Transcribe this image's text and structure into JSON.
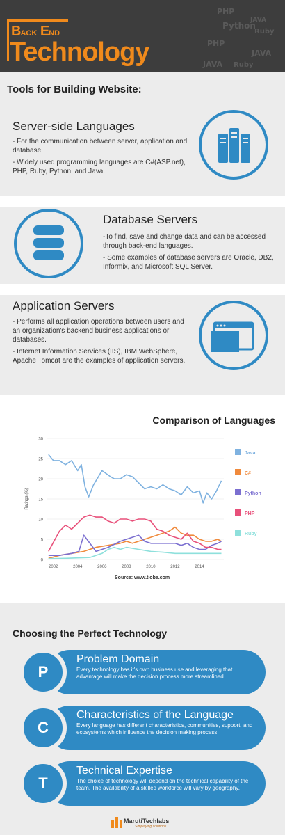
{
  "header": {
    "logo_b": "B",
    "logo_ack": "ACK",
    "logo_e": "E",
    "logo_nd": "ND",
    "logo_main": "Technology",
    "bg_words": [
      "PHP",
      "JAVA",
      "Python",
      "Ruby",
      "PHP",
      "JAVA",
      "Ruby",
      "JAVA"
    ]
  },
  "tools": {
    "title": "Tools for Building Website:",
    "server_side": {
      "title": "Server-side Languages",
      "p1": "- For the communication between server, application and database.",
      "p2": "- Widely used programming languages are C#(ASP.net), PHP, Ruby, Python, and Java.",
      "icon": "server-icon"
    },
    "database": {
      "title": "Database Servers",
      "p1": "-To find, save and change data and can be accessed through back-end languages.",
      "p2": "- Some examples of database servers are Oracle, DB2, Informix, and Microsoft SQL Server.",
      "icon": "database-icon"
    },
    "application": {
      "title": "Application Servers",
      "p1": "- Performs all application operations between users and an organization's backend business applications or databases.",
      "p2": "- Internet Information Services (IIS), IBM WebSphere, Apache Tomcat are the examples of application servers.",
      "icon": "app-window-icon"
    }
  },
  "chart_section": {
    "title": "Comparison of Languages",
    "source": "Source: www.tiobe.com"
  },
  "chart_data": {
    "type": "line",
    "ylabel": "Ratings (%)",
    "ylim": [
      0,
      30
    ],
    "yticks": [
      0,
      5,
      10,
      15,
      20,
      25,
      30
    ],
    "xlim": [
      2001.5,
      2016
    ],
    "xticks": [
      2002,
      2004,
      2006,
      2008,
      2010,
      2012,
      2014
    ],
    "grid": "horizontal",
    "legend": "right",
    "series": [
      {
        "name": "Java",
        "color": "#7fb2e0",
        "x": [
          2001.6,
          2002,
          2002.5,
          2003,
          2003.5,
          2004,
          2004.3,
          2004.6,
          2004.9,
          2005.3,
          2006,
          2006.7,
          2007,
          2007.5,
          2008,
          2008.5,
          2009,
          2009.5,
          2010,
          2010.5,
          2011,
          2011.5,
          2012,
          2012.5,
          2013,
          2013.5,
          2014,
          2014.3,
          2014.6,
          2015,
          2015.4,
          2015.8
        ],
        "y": [
          26,
          24.5,
          24.5,
          23.5,
          24.5,
          22,
          23.5,
          18,
          15.5,
          18.5,
          22,
          20.5,
          20,
          20,
          21,
          20.5,
          19,
          17.5,
          18,
          17.5,
          18.5,
          17.5,
          17,
          16,
          18,
          16.5,
          17,
          14,
          16.5,
          15,
          17,
          19.5
        ]
      },
      {
        "name": "C#",
        "color": "#f08a3c",
        "x": [
          2001.6,
          2002.5,
          2003.5,
          2004.5,
          2005.5,
          2006.5,
          2007.5,
          2008,
          2008.5,
          2009,
          2009.5,
          2010,
          2010.5,
          2011,
          2011.5,
          2012,
          2012.5,
          2013,
          2013.5,
          2014,
          2014.5,
          2015,
          2015.5,
          2015.8
        ],
        "y": [
          0.3,
          1,
          1.5,
          2,
          3,
          3.5,
          4,
          4.5,
          4,
          4.5,
          5,
          5.5,
          6,
          6.5,
          7,
          8,
          6.5,
          6,
          6,
          5,
          4.5,
          4.5,
          5,
          4.5
        ]
      },
      {
        "name": "Python",
        "color": "#7b6fd0",
        "x": [
          2001.6,
          2002.5,
          2003.5,
          2004.1,
          2004.5,
          2005.5,
          2006.5,
          2007.5,
          2008,
          2008.5,
          2009,
          2009.5,
          2010,
          2010.5,
          2011,
          2011.5,
          2012,
          2012.5,
          2013,
          2013.5,
          2014,
          2014.5,
          2015,
          2015.5,
          2015.8
        ],
        "y": [
          1,
          1,
          1.5,
          2,
          6,
          2,
          3,
          4.5,
          5,
          5.5,
          6,
          4.5,
          4,
          4,
          4,
          4,
          4,
          3.5,
          4,
          3,
          2.5,
          2.5,
          3.5,
          4,
          4.5
        ]
      },
      {
        "name": "PHP",
        "color": "#e8507a",
        "x": [
          2001.6,
          2002.5,
          2003,
          2003.5,
          2004,
          2004.5,
          2005,
          2005.5,
          2006,
          2006.5,
          2007,
          2007.5,
          2008,
          2008.5,
          2009,
          2009.5,
          2010,
          2010.5,
          2011,
          2011.5,
          2012,
          2012.5,
          2013,
          2013.5,
          2014,
          2014.5,
          2015,
          2015.5,
          2015.8
        ],
        "y": [
          2,
          7,
          8.5,
          7.5,
          9,
          10.5,
          11,
          10.5,
          10.5,
          9.5,
          9,
          10,
          10,
          9.5,
          10,
          10,
          9.5,
          7.5,
          7,
          6,
          5.5,
          5,
          6.5,
          4.5,
          4,
          3,
          3,
          2.5,
          2.5
        ]
      },
      {
        "name": "Ruby",
        "color": "#8ee0dc",
        "x": [
          2001.6,
          2003,
          2004,
          2005,
          2006,
          2006.5,
          2007,
          2007.5,
          2008,
          2009,
          2010,
          2011,
          2012,
          2013,
          2014,
          2015,
          2015.8
        ],
        "y": [
          0.2,
          0.3,
          0.4,
          0.5,
          1.5,
          2.5,
          3,
          2.5,
          3,
          2.5,
          2,
          1.8,
          1.5,
          1.5,
          1.5,
          1.5,
          1.5
        ]
      }
    ]
  },
  "choosing": {
    "title": "Choosing the Perfect Technology",
    "items": [
      {
        "letter": "P",
        "title": "Problem Domain",
        "text": "Every technology has it's own business use and leveraging that advantage will make the decision process more streamlined."
      },
      {
        "letter": "C",
        "title": "Characteristics of the Language",
        "text": "Every language has different characteristics, communities, support, and ecosystems which influence the decision making process."
      },
      {
        "letter": "T",
        "title": "Technical Expertise",
        "text": "The choice of technology will depend on the technical capability of the team. The availability of a skilled workforce will vary by geography."
      }
    ]
  },
  "footer": {
    "name": "MarutiTechlabs",
    "tagline": "Simplifying solutions..."
  },
  "colors": {
    "accent": "#2f8ac4",
    "logo": "#f08a1c",
    "header_bg": "#3d3d3d"
  }
}
